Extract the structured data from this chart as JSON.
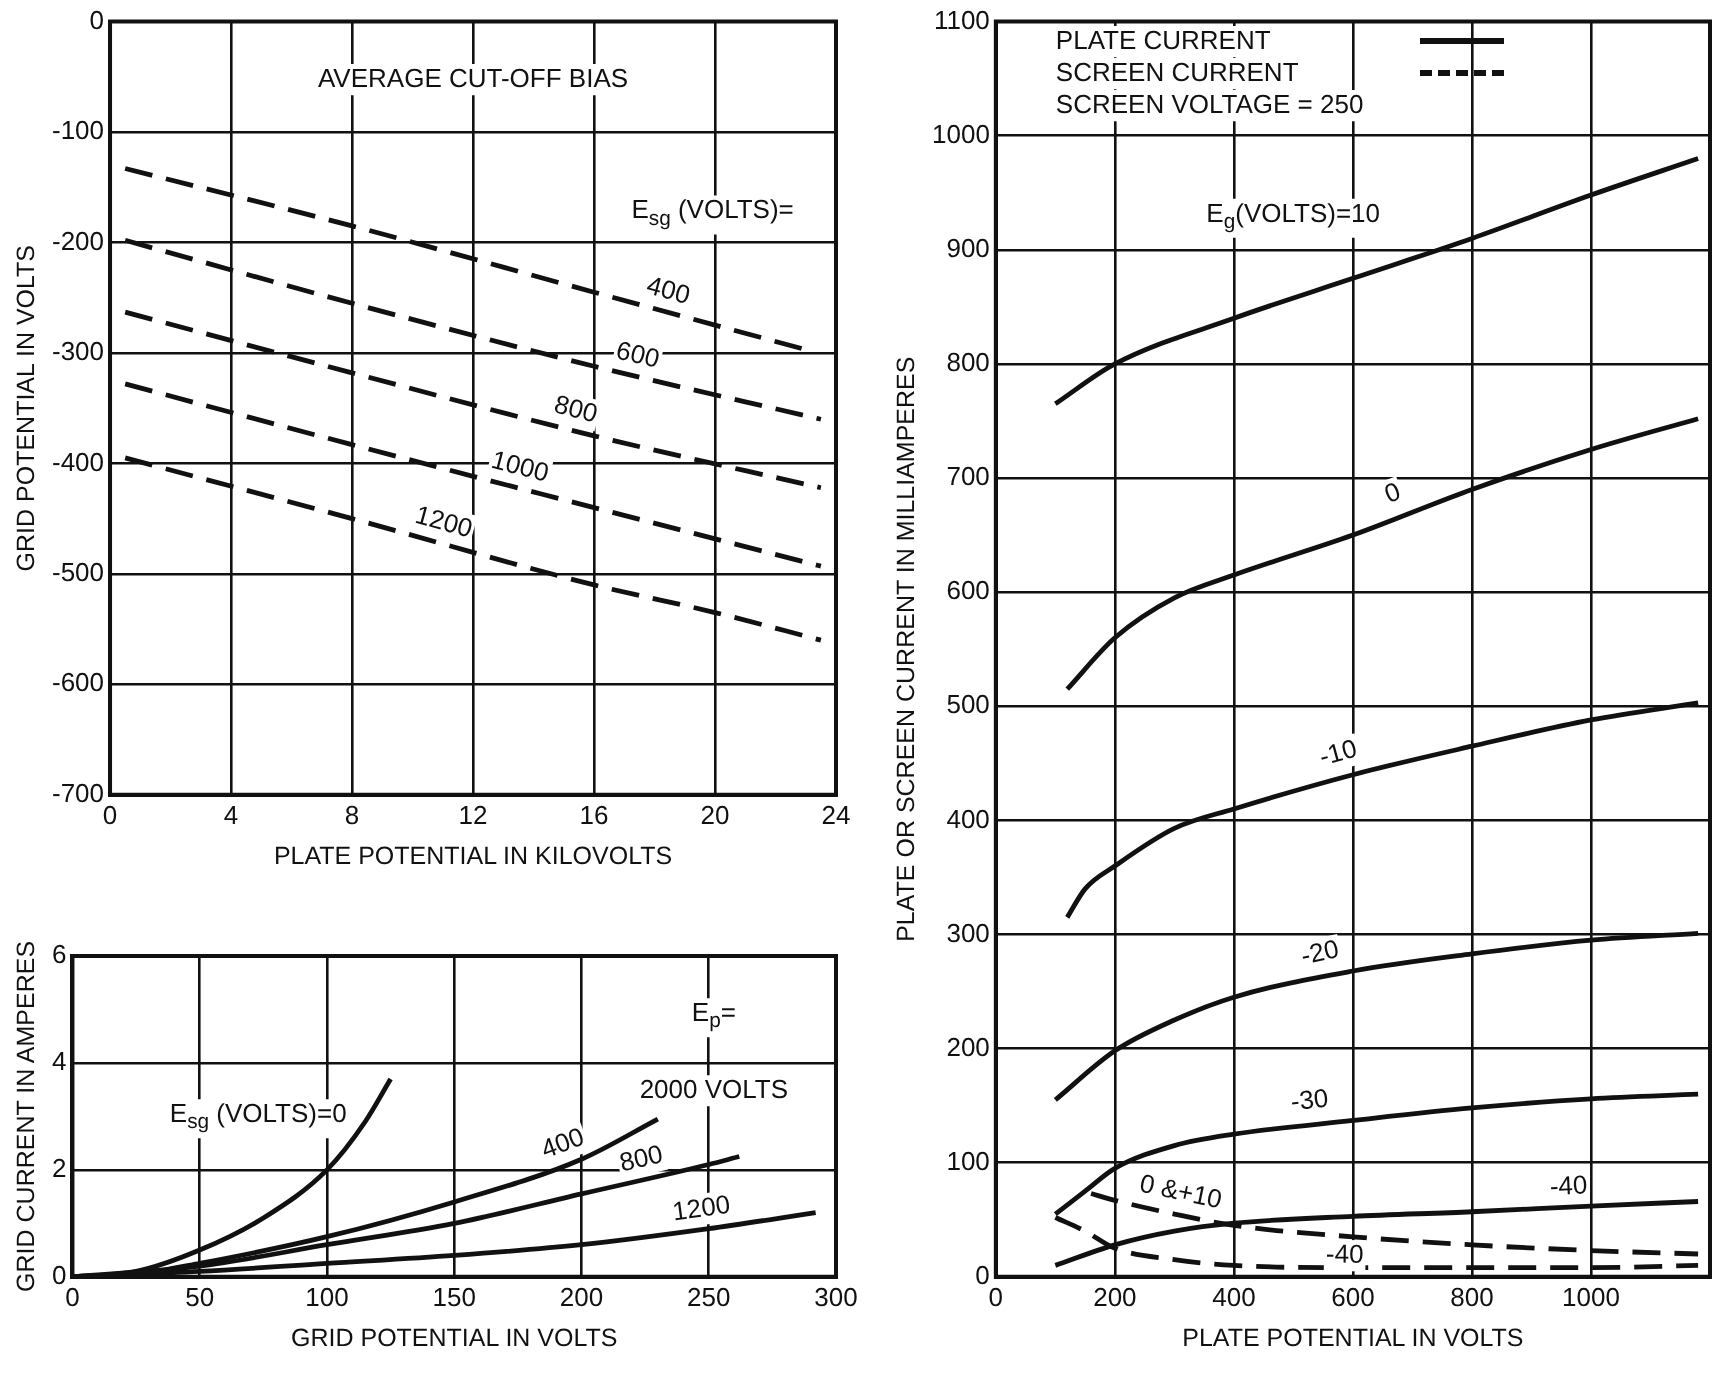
{
  "chart_data": [
    {
      "type": "line",
      "title": "AVERAGE CUT-OFF BIAS",
      "xlabel": "PLATE POTENTIAL IN KILOVOLTS",
      "ylabel": "GRID POTENTIAL IN VOLTS",
      "xlim": [
        0,
        24
      ],
      "xticks": [
        0,
        4,
        8,
        12,
        16,
        20,
        24
      ],
      "ylim": [
        -700,
        0
      ],
      "yticks": [
        -700,
        -600,
        -500,
        -400,
        -300,
        -200,
        -100,
        0
      ],
      "grid": true,
      "marker": "none",
      "line_style": "dashed",
      "series": [
        {
          "name": "400",
          "color": "#111111",
          "x": [
            0.5,
            8,
            16,
            23
          ],
          "values": [
            -133,
            -185,
            -245,
            -297
          ]
        },
        {
          "name": "600",
          "color": "#111111",
          "x": [
            0.5,
            8,
            16,
            23.5
          ],
          "values": [
            -198,
            -255,
            -312,
            -360
          ]
        },
        {
          "name": "800",
          "color": "#111111",
          "x": [
            0.5,
            8,
            16,
            23.5
          ],
          "values": [
            -263,
            -318,
            -375,
            -422
          ]
        },
        {
          "name": "1000",
          "color": "#111111",
          "x": [
            0.5,
            8,
            16,
            23.5
          ],
          "values": [
            -328,
            -383,
            -440,
            -493
          ]
        },
        {
          "name": "1200",
          "color": "#111111",
          "x": [
            0.5,
            8,
            16,
            20,
            23.5
          ],
          "values": [
            -395,
            -450,
            -510,
            -535,
            -560
          ]
        }
      ],
      "annotations": [
        "E$_{sg}$ (VOLTS)="
      ]
    },
    {
      "type": "line",
      "xlabel": "GRID POTENTIAL IN VOLTS",
      "ylabel": "GRID CURRENT IN AMPERES",
      "xlim": [
        0,
        300
      ],
      "xticks": [
        0,
        50,
        100,
        150,
        200,
        250,
        300
      ],
      "ylim": [
        0,
        6
      ],
      "yticks": [
        0,
        2,
        4,
        6
      ],
      "grid": true,
      "marker": "none",
      "series": [
        {
          "name": "E$_{sg}$ (VOLTS)=0",
          "color": "#111111",
          "x": [
            0,
            25,
            50,
            75,
            100,
            115,
            125
          ],
          "values": [
            0,
            0.1,
            0.5,
            1.1,
            2.0,
            2.9,
            3.7
          ]
        },
        {
          "name": "400",
          "color": "#111111",
          "x": [
            0,
            25,
            50,
            100,
            150,
            200,
            230
          ],
          "values": [
            0,
            0.05,
            0.25,
            0.75,
            1.4,
            2.2,
            2.95
          ]
        },
        {
          "name": "800",
          "color": "#111111",
          "x": [
            0,
            50,
            100,
            150,
            200,
            250,
            262
          ],
          "values": [
            0,
            0.2,
            0.6,
            1.0,
            1.55,
            2.1,
            2.25
          ]
        },
        {
          "name": "1200",
          "color": "#111111",
          "x": [
            0,
            50,
            100,
            150,
            200,
            250,
            292
          ],
          "values": [
            0,
            0.1,
            0.25,
            0.4,
            0.6,
            0.9,
            1.2
          ]
        }
      ],
      "annotations": [
        "E$_{p}$=",
        "2000 VOLTS"
      ]
    },
    {
      "type": "line",
      "xlabel": "PLATE POTENTIAL IN VOLTS",
      "ylabel": "PLATE OR SCREEN CURRENT IN MILLIAMPERES",
      "xlim": [
        0,
        1200
      ],
      "xticks": [
        0,
        200,
        400,
        600,
        800,
        1000
      ],
      "ylim": [
        0,
        1100
      ],
      "yticks": [
        0,
        100,
        200,
        300,
        400,
        500,
        600,
        700,
        800,
        900,
        1000,
        1100
      ],
      "grid": true,
      "marker": "none",
      "series": [
        {
          "name": "E$_{g}$(VOLTS)=10",
          "color": "#111111",
          "line_style": "solid",
          "x": [
            100,
            200,
            400,
            600,
            800,
            1000,
            1180
          ],
          "values": [
            765,
            800,
            840,
            875,
            910,
            948,
            980
          ]
        },
        {
          "name": "0",
          "color": "#111111",
          "line_style": "solid",
          "x": [
            120,
            200,
            300,
            400,
            600,
            800,
            1000,
            1180
          ],
          "values": [
            515,
            560,
            595,
            615,
            650,
            690,
            725,
            752
          ]
        },
        {
          "name": "-10",
          "color": "#111111",
          "line_style": "solid",
          "x": [
            120,
            150,
            200,
            300,
            400,
            600,
            800,
            1000,
            1180
          ],
          "values": [
            315,
            340,
            360,
            393,
            410,
            440,
            465,
            488,
            503
          ]
        },
        {
          "name": "-20",
          "color": "#111111",
          "line_style": "solid",
          "x": [
            100,
            200,
            300,
            400,
            600,
            800,
            1000,
            1180
          ],
          "values": [
            155,
            198,
            225,
            245,
            268,
            283,
            295,
            301
          ]
        },
        {
          "name": "-30",
          "color": "#111111",
          "line_style": "solid",
          "x": [
            100,
            150,
            200,
            300,
            400,
            600,
            800,
            1000,
            1180
          ],
          "values": [
            55,
            75,
            95,
            115,
            125,
            137,
            148,
            156,
            160
          ]
        },
        {
          "name": "-40",
          "color": "#111111",
          "line_style": "solid",
          "x": [
            100,
            200,
            300,
            400,
            600,
            800,
            1000,
            1180
          ],
          "values": [
            10,
            28,
            40,
            47,
            53,
            57,
            62,
            66
          ]
        },
        {
          "name": "0 &+10",
          "color": "#111111",
          "line_style": "dashed",
          "x": [
            160,
            200,
            300,
            400,
            600,
            800,
            1000,
            1180
          ],
          "values": [
            73,
            67,
            55,
            45,
            35,
            28,
            23,
            20
          ]
        },
        {
          "name": "-40",
          "color": "#111111",
          "line_style": "dashed",
          "x": [
            100,
            150,
            200,
            300,
            400,
            600,
            800,
            1000,
            1180
          ],
          "values": [
            52,
            40,
            25,
            15,
            10,
            8,
            8,
            8,
            10
          ]
        }
      ],
      "annotations": [
        "PLATE CURRENT",
        "SCREEN CURRENT",
        "SCREEN VOLTAGE = 250"
      ]
    }
  ]
}
